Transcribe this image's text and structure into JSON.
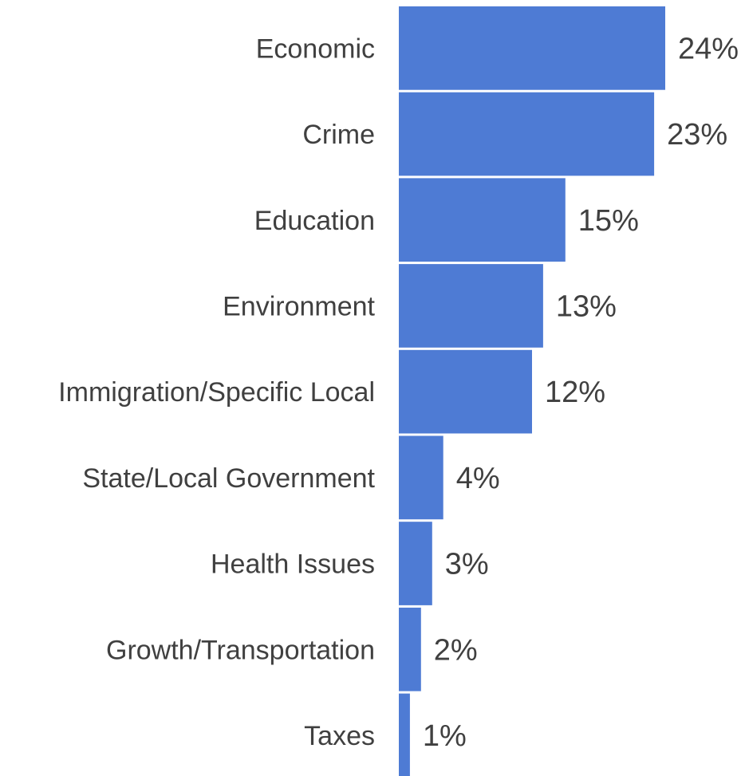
{
  "chart_data": {
    "type": "bar",
    "orientation": "horizontal",
    "categories": [
      "Economic",
      "Crime",
      "Education",
      "Environment",
      "Immigration/Specific Local",
      "State/Local Government",
      "Health Issues",
      "Growth/Transportation",
      "Taxes"
    ],
    "values": [
      24,
      23,
      15,
      13,
      12,
      4,
      3,
      2,
      1
    ],
    "value_labels": [
      "24%",
      "23%",
      "15%",
      "13%",
      "12%",
      "4%",
      "3%",
      "2%",
      "1%"
    ],
    "unit": "%",
    "xlim": [
      0,
      24
    ],
    "grid": false,
    "legend": "none",
    "bar_color": "#4e7bd4"
  }
}
